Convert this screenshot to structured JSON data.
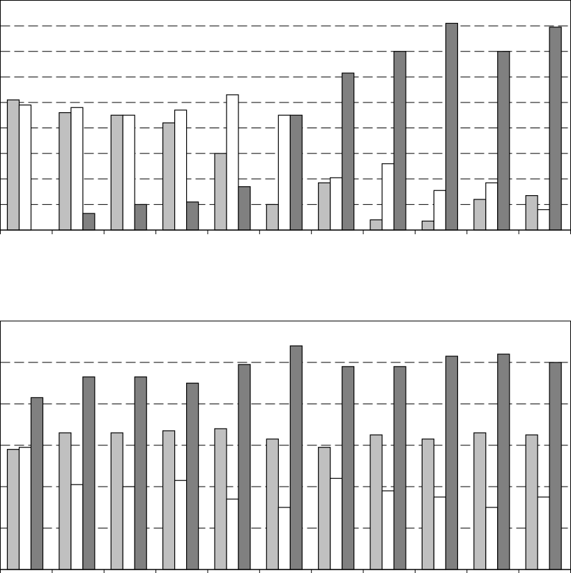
{
  "chart_data": [
    {
      "type": "bar",
      "categories": [
        null,
        null,
        null,
        null,
        null,
        null,
        null,
        null,
        null,
        null,
        null
      ],
      "series": [
        {
          "color": "#c0c0c0",
          "values": [
            5.1,
            4.6,
            4.5,
            4.2,
            3.0,
            1.0,
            1.85,
            0.4,
            0.35,
            1.2,
            1.35
          ]
        },
        {
          "color": "#ffffff",
          "values": [
            4.9,
            4.8,
            4.5,
            4.7,
            5.3,
            4.5,
            2.05,
            2.6,
            1.55,
            1.85,
            0.8
          ]
        },
        {
          "color": "#808080",
          "values": [
            0,
            0.65,
            1.0,
            1.1,
            1.7,
            4.5,
            6.15,
            7.0,
            8.1,
            7.0,
            7.95
          ]
        }
      ],
      "ylim": [
        0,
        9
      ],
      "yticks": [
        1,
        2,
        3,
        4,
        5,
        6,
        7,
        8
      ],
      "grid": true
    },
    {
      "type": "bar",
      "categories": [
        null,
        null,
        null,
        null,
        null,
        null,
        null,
        null,
        null,
        null,
        null
      ],
      "series": [
        {
          "color": "#c0c0c0",
          "values": [
            2.9,
            3.3,
            3.3,
            3.35,
            3.4,
            3.15,
            2.95,
            3.25,
            3.15,
            3.3,
            3.25
          ]
        },
        {
          "color": "#ffffff",
          "values": [
            2.95,
            2.05,
            2.0,
            2.15,
            1.7,
            1.5,
            2.2,
            1.9,
            1.75,
            1.5,
            1.75
          ]
        },
        {
          "color": "#808080",
          "values": [
            4.15,
            4.65,
            4.65,
            4.5,
            4.95,
            5.4,
            4.9,
            4.9,
            5.15,
            5.2,
            5.0
          ]
        }
      ],
      "ylim": [
        0,
        6
      ],
      "yticks": [
        1,
        2,
        3,
        4,
        5
      ],
      "grid": true
    }
  ]
}
